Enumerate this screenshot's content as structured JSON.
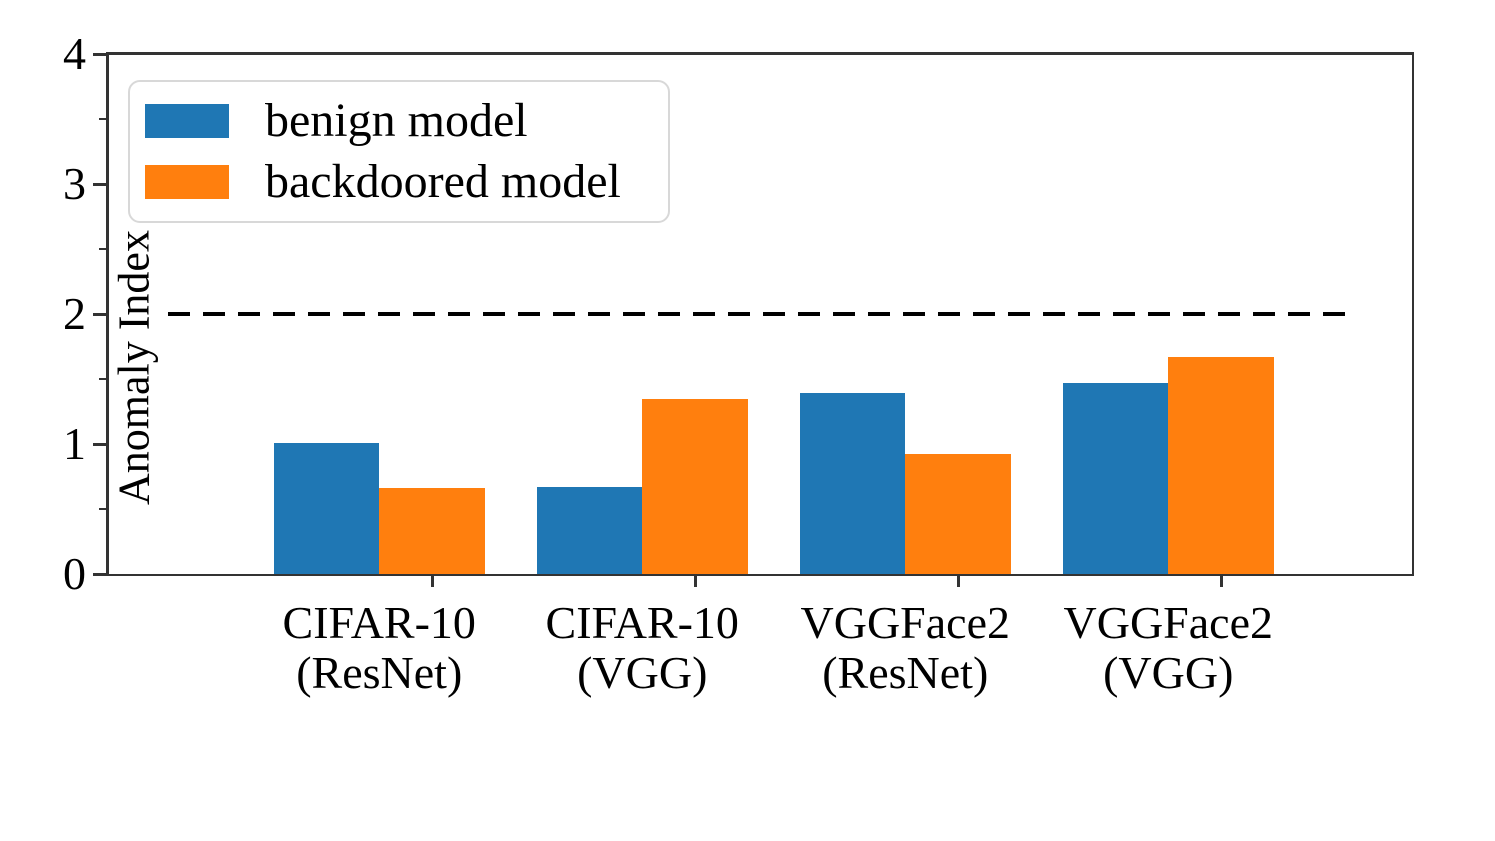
{
  "chart_data": {
    "type": "bar",
    "title": "",
    "ylabel": "Anomaly Index",
    "xlabel": "",
    "ylim": [
      0,
      4
    ],
    "yticks": [
      0,
      1,
      2,
      3,
      4
    ],
    "yticks_minor": [
      0.5,
      1.5,
      2.5,
      3.5
    ],
    "grid": false,
    "categories": [
      [
        "CIFAR-10",
        "(ResNet)"
      ],
      [
        "CIFAR-10",
        "(VGG)"
      ],
      [
        "VGGFace2",
        "(ResNet)"
      ],
      [
        "VGGFace2",
        "(VGG)"
      ]
    ],
    "series": [
      {
        "name": "benign model",
        "color": "#1f77b4",
        "values": [
          1.01,
          0.67,
          1.39,
          1.47
        ]
      },
      {
        "name": "backdoored model",
        "color": "#ff7f0e",
        "values": [
          0.66,
          1.35,
          0.92,
          1.67
        ]
      }
    ],
    "threshold_line": {
      "value": 2,
      "style": "dashed",
      "color": "#000000"
    },
    "legend": {
      "position": "upper-left",
      "entries": [
        "benign model",
        "backdoored model"
      ]
    }
  }
}
